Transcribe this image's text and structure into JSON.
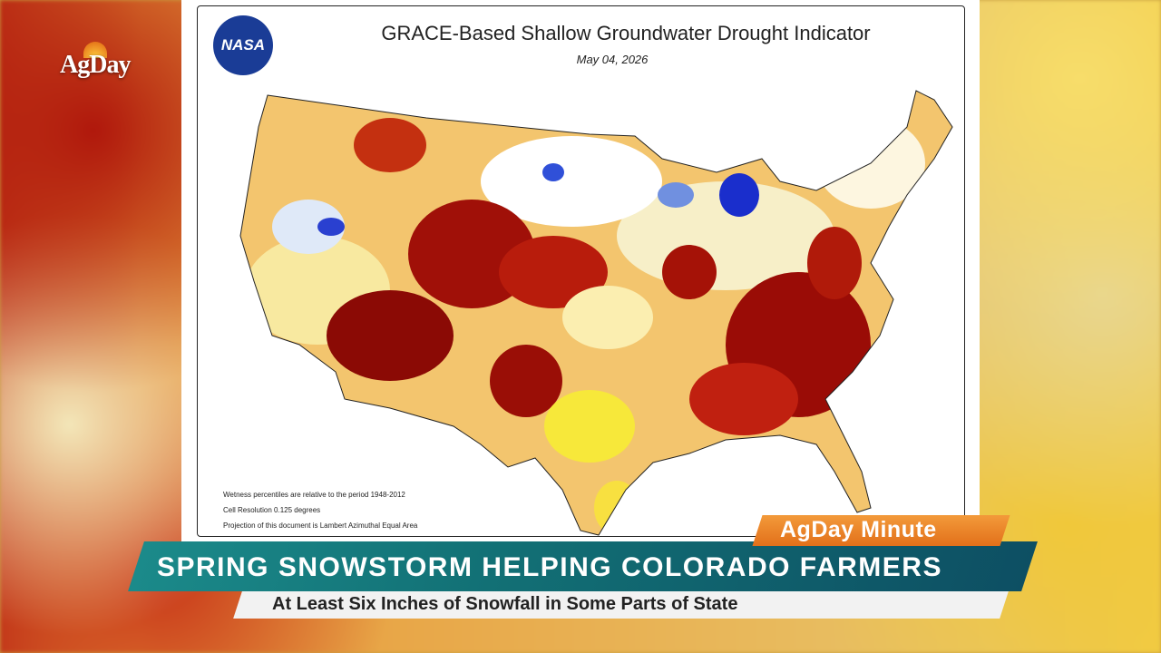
{
  "logo": "AgDay",
  "map": {
    "agency": "NASA",
    "title": "GRACE-Based Shallow Groundwater Drought Indicator",
    "date": "May 04, 2026",
    "notes": [
      "Wetness percentiles are relative to the period 1948-2012",
      "Cell Resolution 0.125 degrees",
      "Projection of this document is Lambert Azimuthal Equal Area"
    ]
  },
  "lower_third": {
    "tag": "AgDay Minute",
    "headline": "SPRING SNOWSTORM HELPING COLORADO FARMERS",
    "subheadline": "At Least Six Inches of Snowfall in Some Parts of State"
  }
}
